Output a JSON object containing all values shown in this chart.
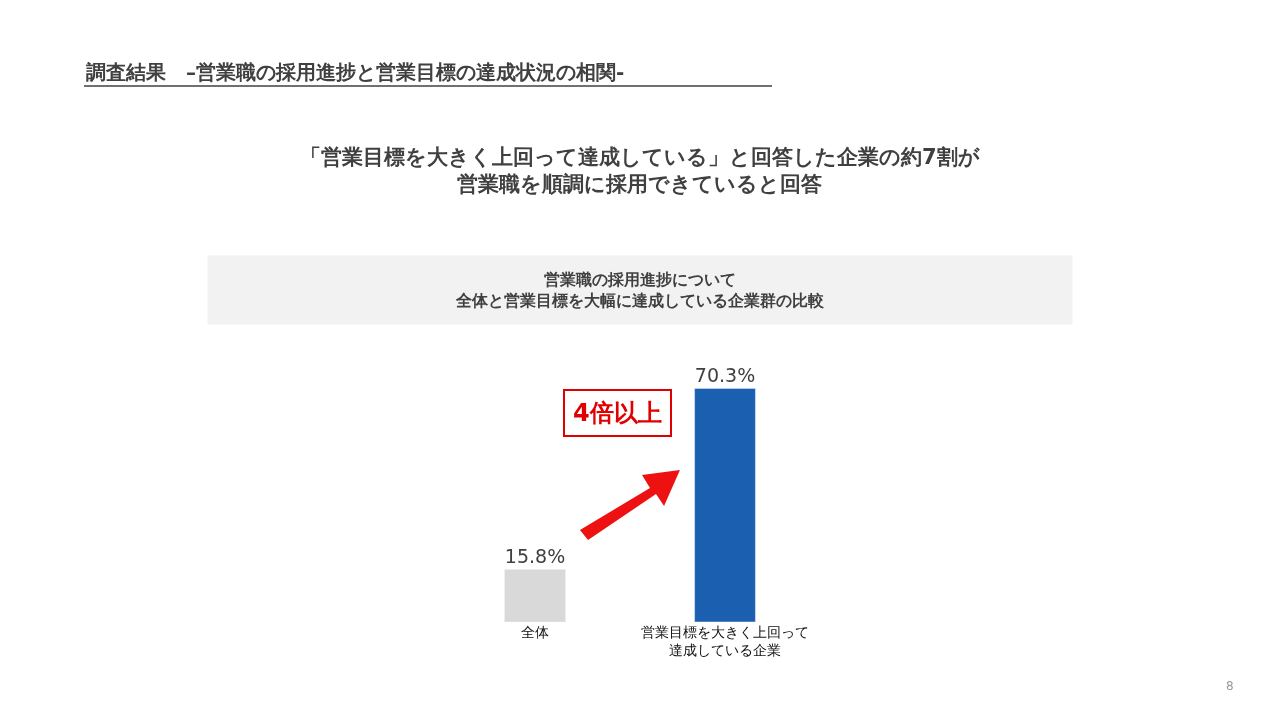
{
  "chart_data": {
    "type": "bar",
    "title": "調査結果　–営業職の採用進捗と営業目標の達成状況の相関-",
    "subtitle": "「営業目標を大きく上回って達成している」と回答した企業の約7割が営業職を順調に採用できていると回答",
    "xlabel": "営業職の採用進捗について全体と営業目標を大幅に達成している企業群の比較",
    "categories": [
      "全体",
      "営業目標を大きく上回って達成している企業"
    ],
    "values": [
      15.8,
      70.3
    ],
    "colors": [
      "#d9d9d9",
      "#1a5fb0"
    ],
    "value_labels": [
      "15.8%",
      "70.3%"
    ],
    "annotations": [
      "4倍以上",
      "8"
    ]
  }
}
